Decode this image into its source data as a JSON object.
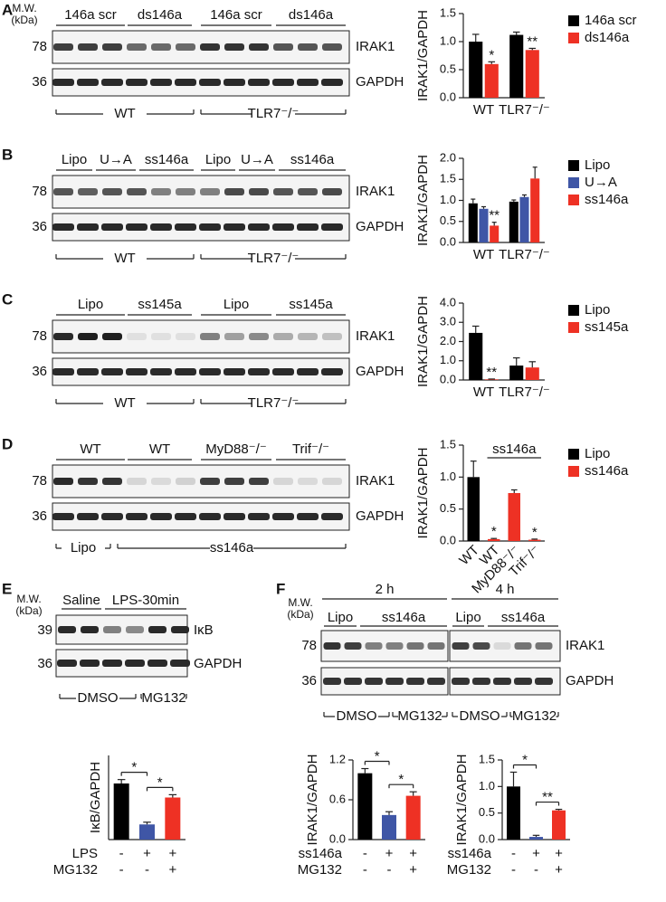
{
  "panels": [
    {
      "letter": "A",
      "mw": "M.W.",
      "kda": "(kDa)",
      "groups": [
        "146a scr",
        "ds146a",
        "146a scr",
        "ds146a"
      ],
      "markers": [
        "78",
        "36"
      ],
      "bands": [
        "IRAK1",
        "GAPDH"
      ],
      "genotypes": [
        "WT",
        "TLR7⁻/⁻"
      ]
    },
    {
      "letter": "B",
      "groups": [
        "Lipo",
        "U→A",
        "ss146a",
        "Lipo",
        "U→A",
        "ss146a"
      ],
      "markers": [
        "78",
        "36"
      ],
      "bands": [
        "IRAK1",
        "GAPDH"
      ],
      "genotypes": [
        "WT",
        "TLR7⁻/⁻"
      ]
    },
    {
      "letter": "C",
      "groups": [
        "Lipo",
        "ss145a",
        "Lipo",
        "ss145a"
      ],
      "markers": [
        "78",
        "36"
      ],
      "bands": [
        "IRAK1",
        "GAPDH"
      ],
      "genotypes": [
        "WT",
        "TLR7⁻/⁻"
      ]
    },
    {
      "letter": "D",
      "groups": [
        "WT",
        "WT",
        "MyD88⁻/⁻",
        "Trif⁻/⁻"
      ],
      "markers": [
        "78",
        "36"
      ],
      "bands": [
        "IRAK1",
        "GAPDH"
      ],
      "genotypes": [
        "Lipo",
        "ss146a"
      ]
    },
    {
      "letter": "E",
      "mw": "M.W.",
      "kda": "(kDa)",
      "groups": [
        "Saline",
        "LPS-30min"
      ],
      "markers": [
        "39",
        "36"
      ],
      "bands": [
        "IκB",
        "GAPDH"
      ],
      "genotypes": [
        "DMSO",
        "MG132"
      ]
    },
    {
      "letter": "F",
      "mw": "M.W.",
      "kda": "(kDa)",
      "times": [
        "2 h",
        "4 h"
      ],
      "groups": [
        "Lipo",
        "ss146a",
        "Lipo",
        "ss146a"
      ],
      "markers": [
        "78",
        "36"
      ],
      "bands": [
        "IRAK1",
        "GAPDH"
      ],
      "genotypes": [
        "DMSO",
        "MG132",
        "DMSO",
        "MG132"
      ]
    }
  ],
  "chart_data": [
    {
      "type": "bar",
      "y_label": "IRAK1/GAPDH",
      "categories": [
        "WT",
        "TLR7⁻/⁻"
      ],
      "series": [
        {
          "name": "146a scr",
          "color": "#000000",
          "values": [
            1.0,
            1.12
          ],
          "errors": [
            0.13,
            0.05
          ]
        },
        {
          "name": "ds146a",
          "color": "#ee3124",
          "values": [
            0.6,
            0.85
          ],
          "errors": [
            0.04,
            0.03
          ]
        }
      ],
      "ylim": [
        0,
        1.5
      ],
      "yticks": [
        {
          "value": 0,
          "label": "0.0"
        },
        0.5,
        {
          "value": 1,
          "label": "1.0"
        },
        1.5
      ],
      "annotations": [
        {
          "text": "*",
          "series": 1,
          "category": 0
        },
        {
          "text": "**",
          "series": 1,
          "category": 1
        }
      ]
    },
    {
      "type": "bar",
      "y_label": "IRAK1/GAPDH",
      "categories": [
        "WT",
        "TLR7⁻/⁻"
      ],
      "series": [
        {
          "name": "Lipo",
          "color": "#000000",
          "values": [
            0.93,
            0.97
          ],
          "errors": [
            0.1,
            0.04
          ]
        },
        {
          "name": "U→A",
          "color": "#3f56a6",
          "values": [
            0.8,
            1.08
          ],
          "errors": [
            0.05,
            0.05
          ]
        },
        {
          "name": "ss146a",
          "color": "#ee3124",
          "values": [
            0.4,
            1.52
          ],
          "errors": [
            0.08,
            0.27
          ]
        }
      ],
      "ylim": [
        0,
        2
      ],
      "yticks": [
        {
          "value": 0,
          "label": "0.0"
        },
        0.5,
        {
          "value": 1,
          "label": "1.0"
        },
        1.5,
        {
          "value": 2,
          "label": "2.0"
        }
      ],
      "annotations": [
        {
          "text": "**",
          "series": 2,
          "category": 0
        }
      ]
    },
    {
      "type": "bar",
      "y_label": "IRAK1/GAPDH",
      "categories": [
        "WT",
        "TLR7⁻/⁻"
      ],
      "series": [
        {
          "name": "Lipo",
          "color": "#000000",
          "values": [
            2.45,
            0.75
          ],
          "errors": [
            0.35,
            0.4
          ]
        },
        {
          "name": "ss145a",
          "color": "#ee3124",
          "values": [
            0.03,
            0.65
          ],
          "errors": [
            0.02,
            0.3
          ]
        }
      ],
      "ylim": [
        0,
        4
      ],
      "yticks": [
        {
          "value": 0,
          "label": "0.0"
        },
        {
          "value": 1,
          "label": "1.0"
        },
        {
          "value": 2,
          "label": "2.0"
        },
        {
          "value": 3,
          "label": "3.0"
        },
        {
          "value": 4,
          "label": "4.0"
        }
      ],
      "annotations": [
        {
          "text": "**",
          "series": 1,
          "category": 0
        }
      ]
    },
    {
      "type": "bar",
      "y_label": "IRAK1/GAPDH",
      "categories": [
        "WT",
        "WT",
        "MyD88⁻/⁻",
        "Trif⁻/⁻"
      ],
      "rotated_labels": true,
      "values": [
        1.0,
        0.03,
        0.75,
        0.02
      ],
      "errors": [
        0.25,
        0.01,
        0.05,
        0.01
      ],
      "colors": [
        "#000000",
        "#ee3124",
        "#ee3124",
        "#ee3124"
      ],
      "legend": [
        {
          "name": "Lipo",
          "color": "#000000"
        },
        {
          "name": "ss146a",
          "color": "#ee3124"
        }
      ],
      "group_bracket": {
        "label": "ss146a",
        "from": 1,
        "to": 3
      },
      "ylim": [
        0,
        1.5
      ],
      "yticks": [
        {
          "value": 0,
          "label": "0.0"
        },
        0.5,
        {
          "value": 1,
          "label": "1.0"
        },
        1.5
      ],
      "annotations": [
        {
          "text": "*",
          "category": 1
        },
        {
          "text": "*",
          "category": 3
        }
      ]
    },
    {
      "type": "bar",
      "y_label": "IκB/GAPDH",
      "values": [
        1.0,
        0.27,
        0.75
      ],
      "errors": [
        0.07,
        0.04,
        0.05
      ],
      "colors": [
        "#000000",
        "#3f56a6",
        "#ee3124"
      ],
      "ylim": [
        0,
        1.5
      ],
      "rows": [
        {
          "label": "LPS",
          "marks": [
            "-",
            "+",
            "+"
          ]
        },
        {
          "label": "MG132",
          "marks": [
            "-",
            "-",
            "+"
          ]
        }
      ],
      "annotations": [
        {
          "text": "*",
          "between": [
            0,
            1
          ]
        },
        {
          "text": "*",
          "between": [
            1,
            2
          ]
        }
      ]
    },
    {
      "type": "bar",
      "y_label": "IRAK1/GAPDH",
      "values": [
        1.0,
        0.37,
        0.66
      ],
      "errors": [
        0.07,
        0.05,
        0.06
      ],
      "colors": [
        "#000000",
        "#3f56a6",
        "#ee3124"
      ],
      "ylim": [
        0,
        1.2
      ],
      "yticks": [
        {
          "value": 0,
          "label": "0.0"
        },
        0.6,
        1.2
      ],
      "rows": [
        {
          "label": "ss146a",
          "marks": [
            "-",
            "+",
            "+"
          ]
        },
        {
          "label": "MG132",
          "marks": [
            "-",
            "-",
            "+"
          ]
        }
      ],
      "annotations": [
        {
          "text": "*",
          "between": [
            0,
            1
          ]
        },
        {
          "text": "*",
          "between": [
            1,
            2
          ]
        }
      ]
    },
    {
      "type": "bar",
      "y_label": "IRAK1/GAPDH",
      "values": [
        1.0,
        0.05,
        0.55
      ],
      "errors": [
        0.27,
        0.03,
        0.02
      ],
      "colors": [
        "#000000",
        "#3f56a6",
        "#ee3124"
      ],
      "ylim": [
        0,
        1.5
      ],
      "yticks": [
        {
          "value": 0,
          "label": "0.0"
        },
        0.5,
        {
          "value": 1,
          "label": "1.0"
        },
        1.5
      ],
      "rows": [
        {
          "label": "ss146a",
          "marks": [
            "-",
            "+",
            "+"
          ]
        },
        {
          "label": "MG132",
          "marks": [
            "-",
            "-",
            "+"
          ]
        }
      ],
      "annotations": [
        {
          "text": "*",
          "between": [
            0,
            1
          ]
        },
        {
          "text": "**",
          "between": [
            1,
            2
          ]
        }
      ]
    }
  ]
}
